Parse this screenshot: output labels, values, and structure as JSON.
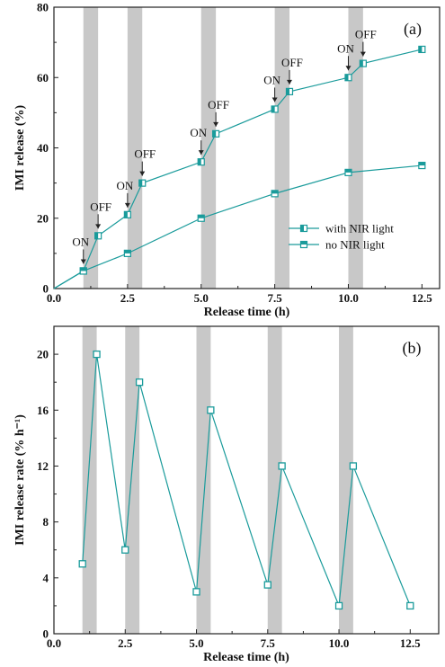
{
  "colors": {
    "series": "#1a9b9b",
    "band": "#c8c8c8",
    "axis": "#222222"
  },
  "chart_data": [
    {
      "type": "line",
      "panel_label": "(a)",
      "xlabel": "Release time (h)",
      "ylabel": "IMI release (%)",
      "xlim": [
        0,
        13.1
      ],
      "ylim": [
        0,
        80
      ],
      "x_ticks": [
        0.0,
        2.5,
        5.0,
        7.5,
        10.0,
        12.5
      ],
      "x_tick_labels": [
        "0.0",
        "2.5",
        "5.0",
        "7.5",
        "10.0",
        "12.5"
      ],
      "y_ticks": [
        0,
        20,
        40,
        60,
        80
      ],
      "y_tick_labels": [
        "0",
        "20",
        "40",
        "60",
        "80"
      ],
      "light_bands": [
        [
          1.0,
          1.5
        ],
        [
          2.5,
          3.0
        ],
        [
          5.0,
          5.5
        ],
        [
          7.5,
          8.0
        ],
        [
          10.0,
          10.5
        ]
      ],
      "legend_position": "center-right",
      "series": [
        {
          "name": "with NIR light",
          "marker": "left-half-square",
          "x": [
            0,
            1.0,
            1.5,
            2.5,
            3.0,
            5.0,
            5.5,
            7.5,
            8.0,
            10.0,
            10.5,
            12.5
          ],
          "y": [
            0,
            5,
            15,
            21,
            30,
            36,
            44,
            51,
            56,
            60,
            64,
            68
          ]
        },
        {
          "name": "no NIR light",
          "marker": "half-square",
          "x": [
            0,
            1.0,
            2.5,
            5.0,
            7.5,
            10.0,
            12.5
          ],
          "y": [
            0,
            5,
            10,
            20,
            27,
            33,
            35
          ]
        }
      ],
      "annotations": [
        {
          "text": "ON",
          "x": 1.0,
          "y": 5
        },
        {
          "text": "OFF",
          "x": 1.5,
          "y": 15
        },
        {
          "text": "ON",
          "x": 2.5,
          "y": 21
        },
        {
          "text": "OFF",
          "x": 3.0,
          "y": 30
        },
        {
          "text": "ON",
          "x": 5.0,
          "y": 36
        },
        {
          "text": "OFF",
          "x": 5.5,
          "y": 44
        },
        {
          "text": "ON",
          "x": 7.5,
          "y": 51
        },
        {
          "text": "OFF",
          "x": 8.0,
          "y": 56
        },
        {
          "text": "ON",
          "x": 10.0,
          "y": 60
        },
        {
          "text": "OFF",
          "x": 10.5,
          "y": 64
        }
      ]
    },
    {
      "type": "line",
      "panel_label": "(b)",
      "xlabel": "Release time (h)",
      "ylabel": "IMI release rate (% h⁻¹)",
      "xlim": [
        0,
        13.5
      ],
      "ylim": [
        0,
        22
      ],
      "x_ticks": [
        0.0,
        2.5,
        5.0,
        7.5,
        10.0,
        12.5
      ],
      "x_tick_labels": [
        "0.0",
        "2.5",
        "5.0",
        "7.5",
        "10.0",
        "12.5"
      ],
      "y_ticks": [
        0,
        4,
        8,
        12,
        16,
        20
      ],
      "y_tick_labels": [
        "0",
        "4",
        "8",
        "12",
        "16",
        "20"
      ],
      "light_bands": [
        [
          1.0,
          1.5
        ],
        [
          2.5,
          3.0
        ],
        [
          5.0,
          5.5
        ],
        [
          7.5,
          8.0
        ],
        [
          10.0,
          10.5
        ]
      ],
      "series": [
        {
          "name": "",
          "marker": "open-square",
          "x": [
            1.0,
            1.5,
            2.5,
            3.0,
            5.0,
            5.5,
            7.5,
            8.0,
            10.0,
            10.5,
            12.5
          ],
          "y": [
            5,
            20,
            6,
            18,
            3,
            16,
            3.5,
            12,
            2,
            12,
            2
          ]
        }
      ]
    }
  ]
}
